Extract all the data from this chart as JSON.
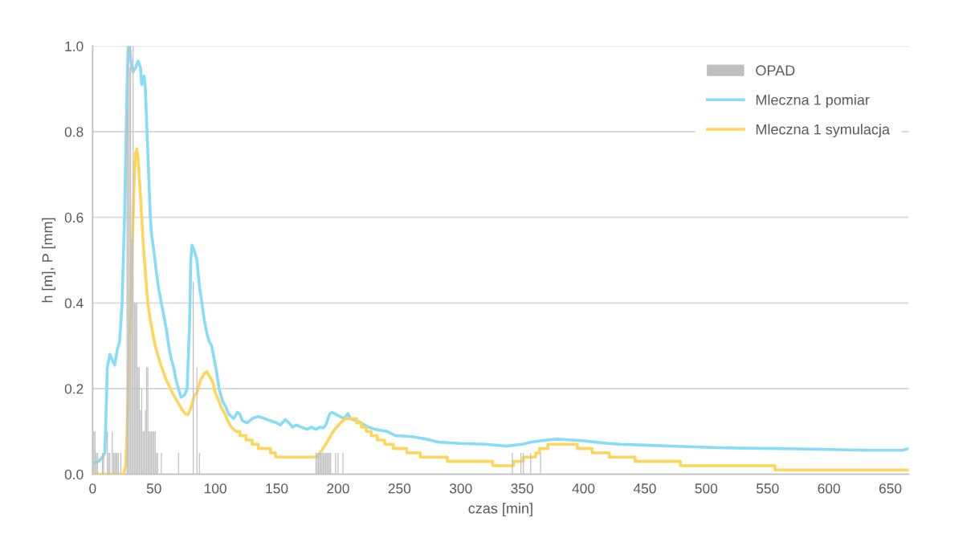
{
  "chart_data": {
    "type": "line",
    "xlabel": "czas [min]",
    "ylabel": "h [m], P [mm]",
    "xlim": [
      0,
      665
    ],
    "xticks": [
      0,
      50,
      100,
      150,
      200,
      250,
      300,
      350,
      400,
      450,
      500,
      550,
      600,
      650
    ],
    "ylim": [
      0,
      1.0
    ],
    "yticks": [
      {
        "value": 0,
        "label": "0.0"
      },
      {
        "value": 0.2,
        "label": "0.2"
      },
      {
        "value": 0.4,
        "label": "0.4"
      },
      {
        "value": 0.6,
        "label": "0.6"
      },
      {
        "value": 0.8,
        "label": "0.8"
      },
      {
        "value": 1.0,
        "label": "1.0"
      }
    ],
    "grid": "y",
    "legend": "top right",
    "series": [
      {
        "name": "OPAD",
        "type": "bar",
        "color": "#bfbfbf",
        "x": [
          1,
          2,
          3,
          4,
          8,
          9,
          12,
          13,
          14,
          16,
          17,
          18,
          19,
          20,
          21,
          23,
          28,
          29,
          30,
          31,
          32,
          33,
          34,
          35,
          36,
          37,
          38,
          39,
          40,
          41,
          42,
          43,
          44,
          45,
          46,
          47,
          48,
          49,
          50,
          51,
          52,
          53,
          56,
          70,
          82,
          85,
          87,
          182,
          183,
          184,
          185,
          186,
          187,
          188,
          189,
          190,
          191,
          192,
          193,
          194,
          198,
          200,
          204,
          342,
          349,
          351,
          357,
          365
        ],
        "values": [
          0.1,
          0.1,
          0.05,
          0.05,
          0.05,
          0.05,
          0.1,
          0.05,
          0.05,
          0.1,
          0.05,
          0.05,
          0.05,
          0.05,
          0.05,
          0.05,
          0.85,
          1.0,
          0.95,
          1.0,
          0.55,
          1.0,
          0.4,
          0.4,
          0.4,
          0.25,
          0.25,
          0.15,
          0.2,
          0.1,
          0.1,
          0.15,
          0.25,
          0.25,
          0.1,
          0.1,
          0.1,
          0.1,
          0.1,
          0.1,
          0.05,
          0.05,
          0.05,
          0.05,
          0.45,
          0.25,
          0.05,
          0.05,
          0.05,
          0.05,
          0.05,
          0.05,
          0.05,
          0.05,
          0.05,
          0.05,
          0.05,
          0.05,
          0.05,
          0.05,
          0.05,
          0.05,
          0.05,
          0.05,
          0.05,
          0.05,
          0.05,
          0.05
        ]
      },
      {
        "name": "Mleczna 1 pomiar",
        "color": "#87dcf7",
        "x": [
          0,
          5,
          8,
          10,
          12,
          14,
          17,
          18,
          20,
          22,
          24,
          26,
          28,
          29,
          30,
          31,
          32,
          33,
          35,
          37,
          39,
          40,
          42,
          43,
          45,
          47,
          48,
          50,
          52,
          54,
          56,
          58,
          60,
          62,
          64,
          66,
          68,
          70,
          72,
          75,
          77,
          79,
          80,
          81,
          83,
          85,
          87,
          89,
          91,
          93,
          95,
          97,
          99,
          101,
          103,
          106,
          108,
          111,
          115,
          118,
          120,
          122,
          126,
          130,
          135,
          140,
          145,
          150,
          153,
          157,
          160,
          163,
          166,
          170,
          175,
          178,
          182,
          185,
          188,
          190,
          193,
          195,
          198,
          205,
          208,
          210,
          215,
          220,
          225,
          230,
          240,
          247,
          260,
          270,
          282,
          300,
          320,
          337,
          350,
          357,
          370,
          378,
          390,
          400,
          410,
          420,
          430,
          450,
          470,
          509,
          530,
          560,
          600,
          630,
          660,
          665
        ],
        "values": [
          0.025,
          0.03,
          0.04,
          0.05,
          0.25,
          0.28,
          0.26,
          0.255,
          0.29,
          0.31,
          0.4,
          0.6,
          0.9,
          1.0,
          1.0,
          0.97,
          0.95,
          0.94,
          0.95,
          0.965,
          0.95,
          0.91,
          0.93,
          0.9,
          0.75,
          0.6,
          0.56,
          0.52,
          0.47,
          0.43,
          0.4,
          0.37,
          0.34,
          0.3,
          0.27,
          0.25,
          0.22,
          0.2,
          0.18,
          0.185,
          0.2,
          0.35,
          0.5,
          0.535,
          0.52,
          0.5,
          0.44,
          0.4,
          0.36,
          0.33,
          0.31,
          0.3,
          0.27,
          0.24,
          0.2,
          0.17,
          0.16,
          0.14,
          0.13,
          0.145,
          0.14,
          0.125,
          0.12,
          0.13,
          0.135,
          0.13,
          0.125,
          0.12,
          0.115,
          0.128,
          0.12,
          0.11,
          0.115,
          0.11,
          0.105,
          0.11,
          0.105,
          0.11,
          0.108,
          0.115,
          0.14,
          0.145,
          0.14,
          0.13,
          0.142,
          0.13,
          0.125,
          0.118,
          0.11,
          0.105,
          0.1,
          0.09,
          0.088,
          0.083,
          0.075,
          0.072,
          0.07,
          0.066,
          0.07,
          0.075,
          0.08,
          0.082,
          0.08,
          0.078,
          0.075,
          0.072,
          0.07,
          0.068,
          0.066,
          0.062,
          0.061,
          0.06,
          0.058,
          0.056,
          0.056,
          0.06
        ]
      },
      {
        "name": "Mleczna 1 symulacja",
        "color": "#ffd55a",
        "x": [
          0,
          25,
          27,
          28,
          34,
          35,
          36,
          37,
          39,
          41,
          43,
          45,
          47,
          49,
          51,
          55,
          60,
          65,
          70,
          73,
          76,
          78,
          80,
          83,
          85,
          88,
          91,
          93,
          95,
          98,
          100,
          103,
          105,
          108,
          110,
          113,
          117,
          120,
          120,
          125,
          125,
          130,
          130,
          135,
          135,
          145,
          145,
          149,
          149,
          162,
          162,
          183,
          190,
          196,
          202,
          206,
          212,
          215,
          215,
          219,
          219,
          223,
          223,
          227,
          227,
          232,
          232,
          238,
          238,
          245,
          245,
          256,
          256,
          267,
          267,
          289,
          289,
          326,
          326,
          343,
          343,
          351,
          351,
          361,
          361,
          364,
          364,
          371,
          371,
          395,
          395,
          407,
          407,
          421,
          421,
          442,
          442,
          479,
          479,
          556,
          556,
          665
        ],
        "values": [
          0,
          0,
          0.02,
          0.1,
          0.7,
          0.75,
          0.76,
          0.74,
          0.65,
          0.55,
          0.47,
          0.4,
          0.36,
          0.33,
          0.3,
          0.26,
          0.22,
          0.19,
          0.165,
          0.15,
          0.14,
          0.14,
          0.155,
          0.185,
          0.19,
          0.22,
          0.235,
          0.24,
          0.23,
          0.215,
          0.19,
          0.17,
          0.155,
          0.14,
          0.125,
          0.11,
          0.1,
          0.1,
          0.09,
          0.09,
          0.08,
          0.08,
          0.07,
          0.07,
          0.06,
          0.06,
          0.05,
          0.05,
          0.04,
          0.04,
          0.04,
          0.04,
          0.07,
          0.1,
          0.12,
          0.13,
          0.13,
          0.13,
          0.12,
          0.12,
          0.11,
          0.11,
          0.1,
          0.1,
          0.09,
          0.09,
          0.08,
          0.08,
          0.07,
          0.07,
          0.06,
          0.06,
          0.05,
          0.05,
          0.04,
          0.04,
          0.03,
          0.03,
          0.02,
          0.02,
          0.03,
          0.03,
          0.04,
          0.04,
          0.05,
          0.05,
          0.06,
          0.06,
          0.07,
          0.07,
          0.06,
          0.06,
          0.05,
          0.05,
          0.04,
          0.04,
          0.03,
          0.03,
          0.02,
          0.02,
          0.01,
          0.01
        ]
      }
    ]
  }
}
